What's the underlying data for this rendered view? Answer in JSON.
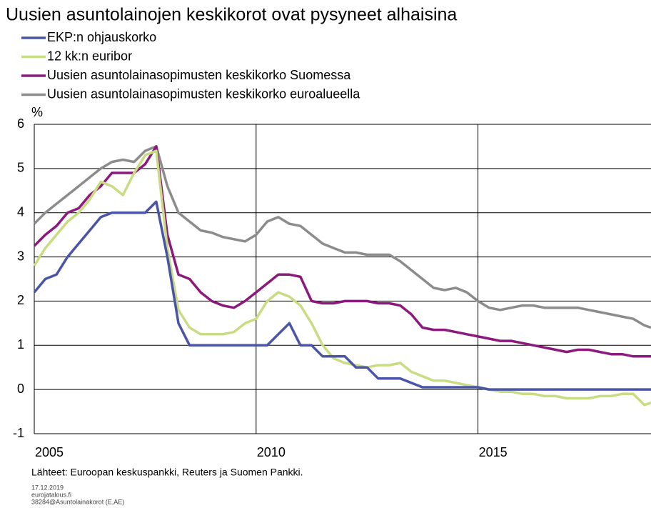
{
  "chart_data": {
    "type": "line",
    "title": "Uusien asuntolainojen keskikorot ovat pysyneet alhaisina",
    "ylabel": "%",
    "source": "Lähteet: Euroopan keskuspankki, Reuters ja Suomen Pankki.",
    "notes": [
      "17.12.2019",
      "eurojatalous.fi",
      "38284@Asuntolainakorot (E,AE)"
    ],
    "x": [
      2005,
      2005.25,
      2005.5,
      2005.75,
      2006,
      2006.25,
      2006.5,
      2006.75,
      2007,
      2007.25,
      2007.5,
      2007.75,
      2008,
      2008.25,
      2008.5,
      2008.75,
      2009,
      2009.25,
      2009.5,
      2009.75,
      2010,
      2010.25,
      2010.5,
      2010.75,
      2011,
      2011.25,
      2011.5,
      2011.75,
      2012,
      2012.25,
      2012.5,
      2012.75,
      2013,
      2013.25,
      2013.5,
      2013.75,
      2014,
      2014.25,
      2014.5,
      2014.75,
      2015,
      2015.25,
      2015.5,
      2015.75,
      2016,
      2016.25,
      2016.5,
      2016.75,
      2017,
      2017.25,
      2017.5,
      2017.75,
      2018,
      2018.25,
      2018.5,
      2018.75,
      2018.9
    ],
    "series": [
      {
        "name": "EKP:n ohjauskorko",
        "color": "#4b55a8",
        "values": [
          2.2,
          2.5,
          2.6,
          3.0,
          3.3,
          3.6,
          3.9,
          4.0,
          4.0,
          4.0,
          4.0,
          4.25,
          3.0,
          1.5,
          1.0,
          1.0,
          1.0,
          1.0,
          1.0,
          1.0,
          1.0,
          1.0,
          1.25,
          1.5,
          1.0,
          1.0,
          0.75,
          0.75,
          0.75,
          0.5,
          0.5,
          0.25,
          0.25,
          0.25,
          0.15,
          0.05,
          0.05,
          0.05,
          0.05,
          0.05,
          0.05,
          0,
          0,
          0,
          0,
          0,
          0,
          0,
          0,
          0,
          0,
          0,
          0,
          0,
          0,
          0,
          0
        ]
      },
      {
        "name": "12 kk:n euribor",
        "color": "#c8dc82",
        "values": [
          2.8,
          3.2,
          3.5,
          3.8,
          4.0,
          4.3,
          4.7,
          4.6,
          4.4,
          4.9,
          5.3,
          5.4,
          3.2,
          1.8,
          1.4,
          1.25,
          1.25,
          1.25,
          1.3,
          1.5,
          1.6,
          2.0,
          2.2,
          2.1,
          1.9,
          1.5,
          1.0,
          0.7,
          0.6,
          0.55,
          0.5,
          0.55,
          0.55,
          0.6,
          0.4,
          0.3,
          0.2,
          0.2,
          0.15,
          0.1,
          0.05,
          0,
          -0.05,
          -0.05,
          -0.1,
          -0.1,
          -0.15,
          -0.15,
          -0.2,
          -0.2,
          -0.2,
          -0.15,
          -0.15,
          -0.1,
          -0.1,
          -0.35,
          -0.3
        ]
      },
      {
        "name": "Uusien asuntolainasopimusten keskikorko Suomessa",
        "color": "#8c1a7d",
        "values": [
          3.25,
          3.5,
          3.7,
          4.0,
          4.1,
          4.4,
          4.6,
          4.9,
          4.9,
          4.9,
          5.1,
          5.5,
          3.5,
          2.6,
          2.5,
          2.2,
          2.0,
          1.9,
          1.85,
          2.0,
          2.2,
          2.4,
          2.6,
          2.6,
          2.55,
          2.0,
          1.95,
          1.95,
          2.0,
          2.0,
          2.0,
          1.95,
          1.95,
          1.9,
          1.7,
          1.4,
          1.35,
          1.35,
          1.3,
          1.25,
          1.2,
          1.15,
          1.1,
          1.1,
          1.05,
          1.0,
          0.95,
          0.9,
          0.85,
          0.9,
          0.9,
          0.85,
          0.8,
          0.8,
          0.75,
          0.75,
          0.75
        ]
      },
      {
        "name": "Uusien asuntolainasopimusten keskikorko euroalueella",
        "color": "#8c8c8c",
        "values": [
          3.75,
          4.0,
          4.2,
          4.4,
          4.6,
          4.8,
          5.0,
          5.15,
          5.2,
          5.15,
          5.4,
          5.5,
          4.6,
          4.0,
          3.8,
          3.6,
          3.55,
          3.45,
          3.4,
          3.35,
          3.5,
          3.8,
          3.9,
          3.75,
          3.7,
          3.5,
          3.3,
          3.2,
          3.1,
          3.1,
          3.05,
          3.05,
          3.05,
          2.9,
          2.7,
          2.5,
          2.3,
          2.25,
          2.3,
          2.2,
          2.0,
          1.85,
          1.8,
          1.85,
          1.9,
          1.9,
          1.85,
          1.85,
          1.85,
          1.85,
          1.8,
          1.75,
          1.7,
          1.65,
          1.6,
          1.45,
          1.4
        ]
      }
    ],
    "xlim": [
      2005,
      2018.9
    ],
    "xticks": [
      2005,
      2010,
      2015
    ],
    "ylim": [
      -1,
      6
    ],
    "yticks": [
      -1,
      0,
      1,
      2,
      3,
      4,
      5,
      6
    ],
    "grid": true
  }
}
